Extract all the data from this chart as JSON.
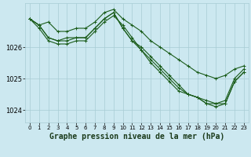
{
  "background_color": "#cce8f0",
  "plot_bg_color": "#cce8f0",
  "line_color": "#1a5c1a",
  "grid_color": "#a8ccd4",
  "xlabel": "Graphe pression niveau de la mer (hPa)",
  "ylim": [
    1023.6,
    1027.4
  ],
  "xlim": [
    -0.5,
    23.5
  ],
  "yticks": [
    1024,
    1025,
    1026
  ],
  "xticks": [
    0,
    1,
    2,
    3,
    4,
    5,
    6,
    7,
    8,
    9,
    10,
    11,
    12,
    13,
    14,
    15,
    16,
    17,
    18,
    19,
    20,
    21,
    22,
    23
  ],
  "series": [
    [
      1026.9,
      1026.7,
      1026.8,
      1026.5,
      1026.5,
      1026.6,
      1026.6,
      1026.8,
      1027.1,
      1027.2,
      1026.9,
      1026.7,
      1026.5,
      1026.2,
      1026.0,
      1025.8,
      1025.6,
      1025.4,
      1025.2,
      1025.1,
      1025.0,
      1025.1,
      1025.3,
      1025.4
    ],
    [
      1026.9,
      1026.6,
      1026.2,
      1026.1,
      1026.1,
      1026.2,
      1026.2,
      1026.5,
      1026.8,
      1027.0,
      1026.7,
      1026.3,
      1025.9,
      1025.5,
      1025.2,
      1024.9,
      1024.6,
      1024.5,
      1024.4,
      1024.3,
      1024.2,
      1024.3,
      1025.0,
      1025.3
    ],
    [
      1026.9,
      1026.7,
      1026.3,
      1026.2,
      1026.2,
      1026.3,
      1026.3,
      1026.6,
      1026.9,
      1027.1,
      1026.6,
      1026.2,
      1026.0,
      1025.7,
      1025.4,
      1025.1,
      1024.8,
      1024.5,
      1024.4,
      1024.2,
      1024.1,
      1024.2,
      1024.9,
      1025.2
    ],
    [
      1026.9,
      1026.7,
      1026.3,
      1026.2,
      1026.3,
      1026.3,
      1026.3,
      1026.6,
      1026.9,
      1027.1,
      1026.6,
      1026.2,
      1025.9,
      1025.6,
      1025.3,
      1025.0,
      1024.7,
      1024.5,
      1024.4,
      1024.2,
      1024.2,
      1024.2,
      1024.9,
      1025.2
    ]
  ],
  "marker": "+",
  "markersize": 3,
  "linewidth": 0.8,
  "tick_fontsize": 6,
  "xlabel_fontsize": 7
}
